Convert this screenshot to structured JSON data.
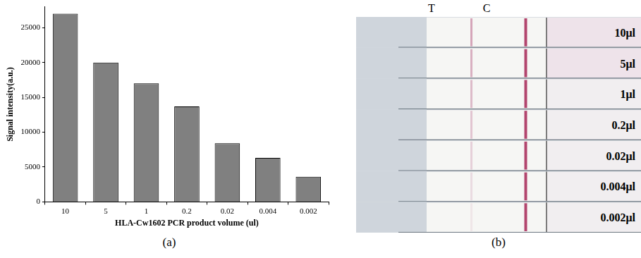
{
  "chart_data": {
    "type": "bar",
    "x_label": "HLA-Cw1602 PCR product volume (ul)",
    "y_label": "Signal intensity(a.u.)",
    "categories": [
      "10",
      "5",
      "1",
      "0.2",
      "0.02",
      "0.004",
      "0.002"
    ],
    "values": [
      27000,
      20000,
      17000,
      13700,
      8400,
      6300,
      3600
    ],
    "color": "#808080",
    "ylim": [
      0,
      28000
    ],
    "yticks": [
      0,
      5000,
      10000,
      15000,
      20000,
      25000
    ],
    "grid": false
  },
  "figure": {
    "panel_labels": [
      "(a)",
      "(b)"
    ],
    "strip_photo": {
      "line_labels": [
        "T",
        "C"
      ],
      "strip_labels": [
        "10μl",
        "5μl",
        "1μl",
        "0.2μl",
        "0.02μl",
        "0.004μl",
        "0.002μl"
      ]
    }
  }
}
